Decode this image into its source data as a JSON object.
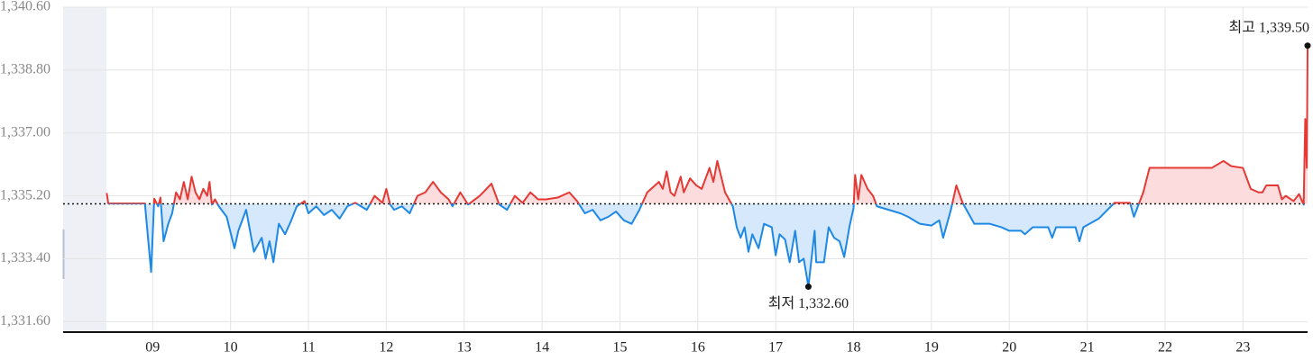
{
  "chart_data": {
    "type": "line",
    "xlim": [
      7.85,
      23.83
    ],
    "ylim": [
      1331.3,
      1340.6
    ],
    "yticks": [
      {
        "value": 1331.6,
        "label": "1,331.60"
      },
      {
        "value": 1333.4,
        "label": "1,333.40"
      },
      {
        "value": 1335.2,
        "label": "1,335.20"
      },
      {
        "value": 1337.0,
        "label": "1,337.00"
      },
      {
        "value": 1338.8,
        "label": "1,338.80"
      },
      {
        "value": 1340.6,
        "label": "1,340.60"
      }
    ],
    "xticks": [
      {
        "value": 9,
        "label": "09"
      },
      10,
      11,
      12,
      13,
      14,
      15,
      16,
      17,
      18,
      19,
      20,
      21,
      22,
      23
    ],
    "grid": true,
    "baseline": 1334.97,
    "up_color": "#e53935",
    "down_color": "#1e88e5",
    "up_fill": "#fcdcdc",
    "down_fill": "#d6e8fb",
    "x": [
      8.41,
      8.43,
      8.9,
      8.98,
      9.02,
      9.07,
      9.1,
      9.14,
      9.2,
      9.25,
      9.3,
      9.35,
      9.4,
      9.45,
      9.5,
      9.55,
      9.6,
      9.65,
      9.7,
      9.73,
      9.76,
      9.8,
      9.85,
      9.95,
      10.05,
      10.1,
      10.2,
      10.3,
      10.4,
      10.45,
      10.5,
      10.55,
      10.62,
      10.7,
      10.78,
      10.85,
      10.95,
      11.0,
      11.1,
      11.2,
      11.3,
      11.4,
      11.5,
      11.6,
      11.75,
      11.85,
      11.95,
      12.0,
      12.05,
      12.1,
      12.2,
      12.3,
      12.4,
      12.5,
      12.6,
      12.7,
      12.8,
      12.85,
      12.95,
      13.05,
      13.2,
      13.35,
      13.45,
      13.55,
      13.65,
      13.75,
      13.85,
      13.95,
      14.05,
      14.2,
      14.35,
      14.45,
      14.55,
      14.65,
      14.75,
      14.85,
      14.95,
      15.05,
      15.15,
      15.25,
      15.35,
      15.5,
      15.55,
      15.6,
      15.65,
      15.7,
      15.78,
      15.82,
      15.9,
      15.98,
      16.05,
      16.15,
      16.2,
      16.25,
      16.35,
      16.45,
      16.5,
      16.55,
      16.6,
      16.65,
      16.7,
      16.78,
      16.85,
      16.95,
      17.0,
      17.05,
      17.12,
      17.18,
      17.25,
      17.3,
      17.36,
      17.42,
      17.47,
      17.5,
      17.52,
      17.62,
      17.68,
      17.75,
      17.82,
      17.88,
      17.95,
      18.0,
      18.02,
      18.06,
      18.1,
      18.18,
      18.25,
      18.3,
      18.45,
      18.6,
      18.7,
      18.85,
      19.0,
      19.1,
      19.15,
      19.25,
      19.32,
      19.4,
      19.55,
      19.75,
      19.9,
      20.0,
      20.15,
      20.2,
      20.3,
      20.5,
      20.55,
      20.6,
      20.85,
      20.9,
      20.95,
      21.15,
      21.35,
      21.55,
      21.6,
      21.72,
      21.8,
      22.6,
      22.75,
      22.85,
      23.0,
      23.1,
      23.2,
      23.25,
      23.3,
      23.45,
      23.5,
      23.55,
      23.65,
      23.72,
      23.78,
      23.8,
      23.82,
      23.83
    ],
    "values": [
      1335.28,
      1334.98,
      1334.98,
      1333.02,
      1335.12,
      1334.9,
      1335.15,
      1333.9,
      1334.4,
      1334.7,
      1335.3,
      1335.1,
      1335.6,
      1335.1,
      1335.75,
      1335.3,
      1335.1,
      1335.4,
      1335.2,
      1335.6,
      1334.95,
      1335.1,
      1334.9,
      1334.6,
      1333.7,
      1334.2,
      1334.8,
      1333.6,
      1334.0,
      1333.4,
      1333.9,
      1333.3,
      1334.4,
      1334.1,
      1334.5,
      1334.9,
      1335.05,
      1334.7,
      1334.9,
      1334.65,
      1334.8,
      1334.55,
      1334.9,
      1335.0,
      1334.8,
      1335.2,
      1335.0,
      1335.4,
      1334.95,
      1334.8,
      1334.9,
      1334.7,
      1335.2,
      1335.3,
      1335.6,
      1335.3,
      1335.1,
      1334.9,
      1335.3,
      1334.95,
      1335.2,
      1335.55,
      1334.95,
      1334.8,
      1335.2,
      1335.0,
      1335.3,
      1335.1,
      1335.1,
      1335.15,
      1335.3,
      1335.05,
      1334.7,
      1334.8,
      1334.5,
      1334.6,
      1334.75,
      1334.5,
      1334.4,
      1334.8,
      1335.3,
      1335.6,
      1335.4,
      1335.9,
      1335.3,
      1335.2,
      1335.75,
      1335.3,
      1335.7,
      1335.5,
      1335.4,
      1336.0,
      1335.6,
      1336.2,
      1335.3,
      1334.9,
      1334.3,
      1334.0,
      1334.3,
      1333.6,
      1334.1,
      1333.7,
      1334.4,
      1334.3,
      1333.5,
      1334.1,
      1333.95,
      1333.3,
      1334.2,
      1333.3,
      1333.4,
      1332.6,
      1333.6,
      1334.2,
      1333.3,
      1333.3,
      1334.3,
      1334.0,
      1333.9,
      1333.45,
      1334.35,
      1334.85,
      1335.8,
      1335.1,
      1335.8,
      1335.4,
      1335.2,
      1334.9,
      1334.8,
      1334.7,
      1334.6,
      1334.4,
      1334.35,
      1334.5,
      1334.0,
      1334.8,
      1335.5,
      1335.0,
      1334.4,
      1334.4,
      1334.3,
      1334.2,
      1334.2,
      1334.1,
      1334.3,
      1334.3,
      1334.0,
      1334.3,
      1334.3,
      1333.9,
      1334.3,
      1334.55,
      1335.0,
      1335.0,
      1334.6,
      1335.3,
      1336.0,
      1336.0,
      1336.2,
      1336.05,
      1336.0,
      1335.4,
      1335.3,
      1335.3,
      1335.5,
      1335.5,
      1335.1,
      1335.2,
      1335.05,
      1335.25,
      1334.95,
      1337.4,
      1336.0,
      1339.5
    ],
    "annotations": [
      {
        "text": "최고 1,339.50",
        "x": 23.83,
        "y": 1339.5
      },
      {
        "text": "최저 1,332.60",
        "x": 17.42,
        "y": 1332.6
      }
    ]
  }
}
